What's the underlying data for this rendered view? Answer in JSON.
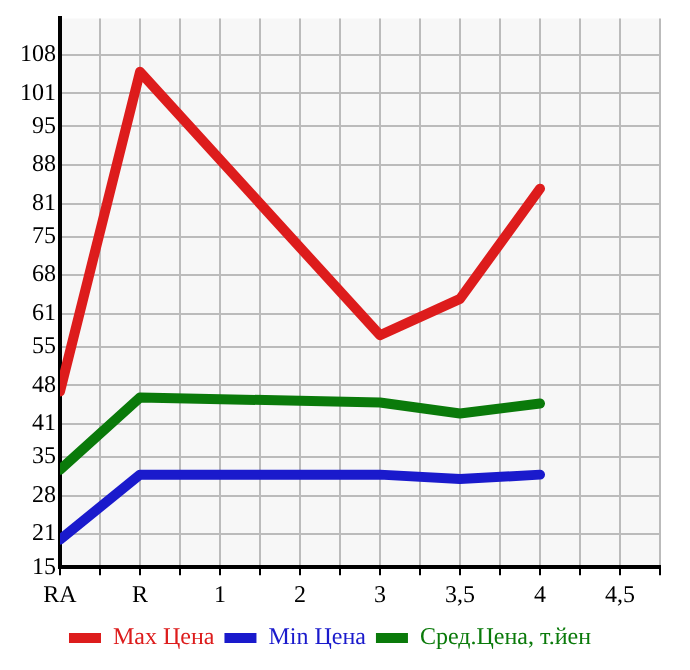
{
  "chart_data": {
    "type": "line",
    "categories": [
      "RA",
      "R",
      "1",
      "2",
      "3",
      "3,5",
      "4",
      "4,5"
    ],
    "series": [
      {
        "name": "Max Цена",
        "color": "#dd1c1c",
        "values": [
          46.9,
          104.9,
          null,
          null,
          57.1,
          63.7,
          83.7,
          null
        ]
      },
      {
        "name": "Min Цена",
        "color": "#1a1acc",
        "values": [
          20.0,
          31.8,
          null,
          null,
          31.8,
          31.0,
          31.8,
          null
        ]
      },
      {
        "name": "Сред.Цена, т.йен",
        "color": "#0a7a0a",
        "values": [
          32.7,
          45.8,
          null,
          null,
          44.9,
          42.9,
          44.7,
          null
        ]
      }
    ],
    "ylim": [
      15,
      114.6
    ],
    "yticks": [
      15,
      21,
      28,
      35,
      41,
      48,
      55,
      61,
      68,
      75,
      81,
      88,
      95,
      101,
      108
    ],
    "grid": true,
    "legend": "bottom",
    "marker": "none",
    "line_style": "solid"
  }
}
